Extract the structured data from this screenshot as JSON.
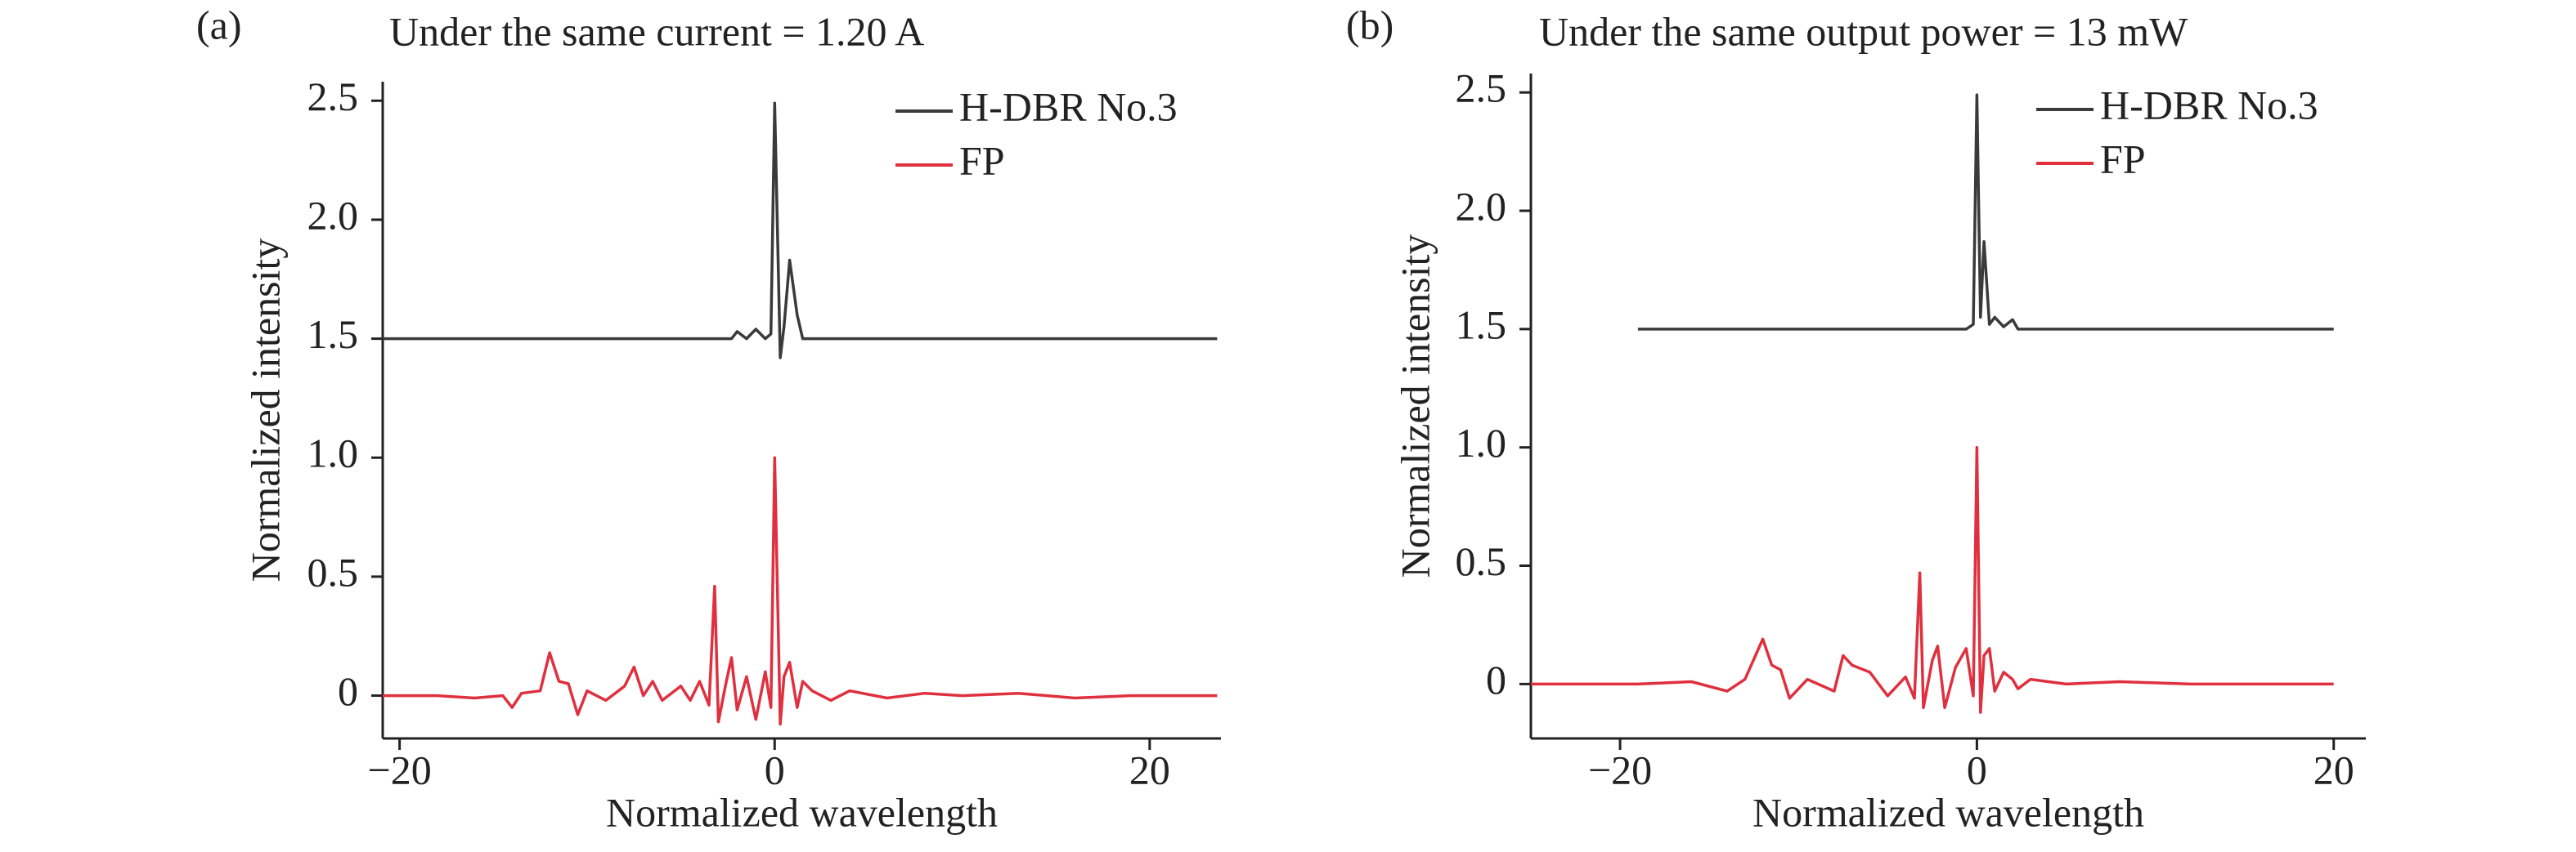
{
  "chart_data": [
    {
      "type": "line",
      "label": "(a)",
      "title": "Under the same current = 1.20 A",
      "x_label": "Normalized wavelength",
      "y_label": "Normalized intensity",
      "xlim": [
        -20.9,
        23.8
      ],
      "ylim": [
        -0.18,
        2.58
      ],
      "xticks": [
        {
          "value": -20,
          "label": "−20"
        },
        0,
        20
      ],
      "yticks": [
        0,
        0.5,
        {
          "value": 1,
          "label": "1.0"
        },
        1.5,
        {
          "value": 2,
          "label": "2.0"
        },
        2.5
      ],
      "x": [
        -20.9,
        -18,
        -16,
        -14.5,
        -14,
        -13.5,
        -12.5,
        -12,
        -11.5,
        -11,
        -10.5,
        -10,
        -9,
        -8,
        -7.5,
        -7,
        -6.5,
        -6,
        -5,
        -4.5,
        -4,
        -3.5,
        -3.2,
        -3,
        -2.6,
        -2.3,
        -2,
        -1.5,
        -1,
        -0.5,
        -0.2,
        0,
        0.3,
        0.5,
        0.8,
        1.2,
        1.5,
        2,
        3,
        4,
        6,
        8,
        10,
        13,
        16,
        19,
        22,
        23.6
      ],
      "series": [
        {
          "name": "H-DBR No.3",
          "color": "#3a3a3a",
          "values": [
            1.5,
            1.5,
            1.5,
            1.5,
            1.5,
            1.5,
            1.5,
            1.5,
            1.5,
            1.5,
            1.5,
            1.5,
            1.5,
            1.5,
            1.5,
            1.5,
            1.5,
            1.5,
            1.5,
            1.5,
            1.5,
            1.5,
            1.5,
            1.5,
            1.5,
            1.5,
            1.53,
            1.5,
            1.54,
            1.5,
            1.52,
            2.49,
            1.42,
            1.55,
            1.83,
            1.6,
            1.5,
            1.5,
            1.5,
            1.5,
            1.5,
            1.5,
            1.5,
            1.5,
            1.5,
            1.5,
            1.5,
            1.5
          ]
        },
        {
          "name": "FP",
          "color": "#e0303f",
          "values": [
            0,
            0,
            -0.01,
            0,
            -0.05,
            0.01,
            0.02,
            0.18,
            0.06,
            0.05,
            -0.08,
            0.02,
            -0.02,
            0.04,
            0.12,
            0,
            0.06,
            -0.02,
            0.04,
            -0.02,
            0.06,
            -0.04,
            0.46,
            -0.11,
            0.05,
            0.16,
            -0.06,
            0.08,
            -0.1,
            0.1,
            -0.05,
            1.0,
            -0.12,
            0.08,
            0.14,
            -0.05,
            0.06,
            0.02,
            -0.02,
            0.02,
            -0.01,
            0.01,
            0,
            0.01,
            -0.01,
            0,
            0,
            0
          ]
        }
      ]
    },
    {
      "type": "line",
      "label": "(b)",
      "title": "Under the same output power = 13 mW",
      "x_label": "Normalized wavelength",
      "y_label": "Normalized intensity",
      "xlim": [
        -25,
        21.8
      ],
      "ylim": [
        -0.23,
        2.58
      ],
      "xticks": [
        {
          "value": -20,
          "label": "−20"
        },
        0,
        20
      ],
      "yticks": [
        0,
        0.5,
        {
          "value": 1,
          "label": "1.0"
        },
        1.5,
        {
          "value": 2,
          "label": "2.0"
        },
        2.5
      ],
      "x": [
        -25,
        -22,
        -19,
        -16,
        -14,
        -13,
        -12,
        -11.5,
        -11,
        -10.5,
        -9.5,
        -8,
        -7.5,
        -7,
        -6,
        -5,
        -4,
        -3.5,
        -3.2,
        -3,
        -2.5,
        -2.2,
        -1.8,
        -1.2,
        -0.6,
        -0.2,
        0,
        0.2,
        0.4,
        0.7,
        1,
        1.5,
        2,
        2.3,
        3,
        5,
        8,
        12,
        16,
        20
      ],
      "series": [
        {
          "name": "H-DBR No.3",
          "color": "#3a3a3a",
          "values": [
            null,
            null,
            1.5,
            1.5,
            1.5,
            1.5,
            1.5,
            1.5,
            1.5,
            1.5,
            1.5,
            1.5,
            1.5,
            1.5,
            1.5,
            1.5,
            1.5,
            1.5,
            1.5,
            1.5,
            1.5,
            1.5,
            1.5,
            1.5,
            1.5,
            1.52,
            2.49,
            1.55,
            1.87,
            1.52,
            1.55,
            1.51,
            1.54,
            1.5,
            1.5,
            1.5,
            1.5,
            1.5,
            1.5,
            1.5
          ]
        },
        {
          "name": "FP",
          "color": "#e0303f",
          "values": [
            0,
            0,
            0,
            0.01,
            -0.03,
            0.02,
            0.19,
            0.08,
            0.06,
            -0.06,
            0.02,
            -0.03,
            0.12,
            0.08,
            0.05,
            -0.05,
            0.03,
            -0.06,
            0.47,
            -0.1,
            0.1,
            0.16,
            -0.1,
            0.07,
            0.15,
            -0.05,
            1.0,
            -0.12,
            0.12,
            0.15,
            -0.03,
            0.05,
            0.02,
            -0.02,
            0.02,
            0,
            0.01,
            0,
            0,
            0
          ]
        }
      ]
    }
  ]
}
